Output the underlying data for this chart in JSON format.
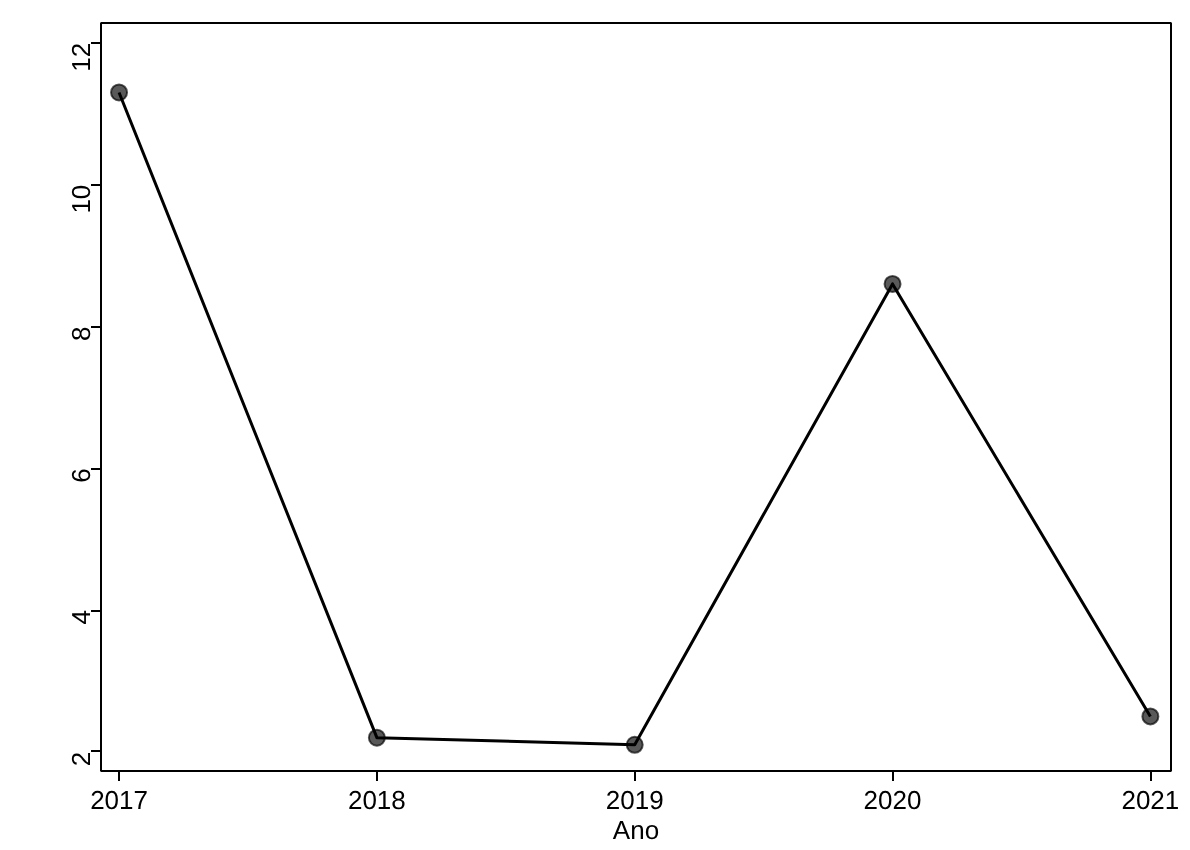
{
  "chart_data": {
    "type": "line",
    "xlabel": "Ano",
    "x": [
      2017,
      2018,
      2019,
      2020,
      2021
    ],
    "series": [
      {
        "color": "#000000",
        "values": [
          11.3,
          2.2,
          2.1,
          8.6,
          2.5
        ]
      }
    ],
    "xlim": [
      2016.93,
      2021.08
    ],
    "ylim": [
      1.73,
      12.28
    ],
    "xticks": [
      2017,
      2018,
      2019,
      2020,
      2021
    ],
    "yticks": [
      2,
      4,
      6,
      8,
      10,
      12
    ],
    "marker": "circle",
    "line_style": "solid",
    "grid": false
  }
}
